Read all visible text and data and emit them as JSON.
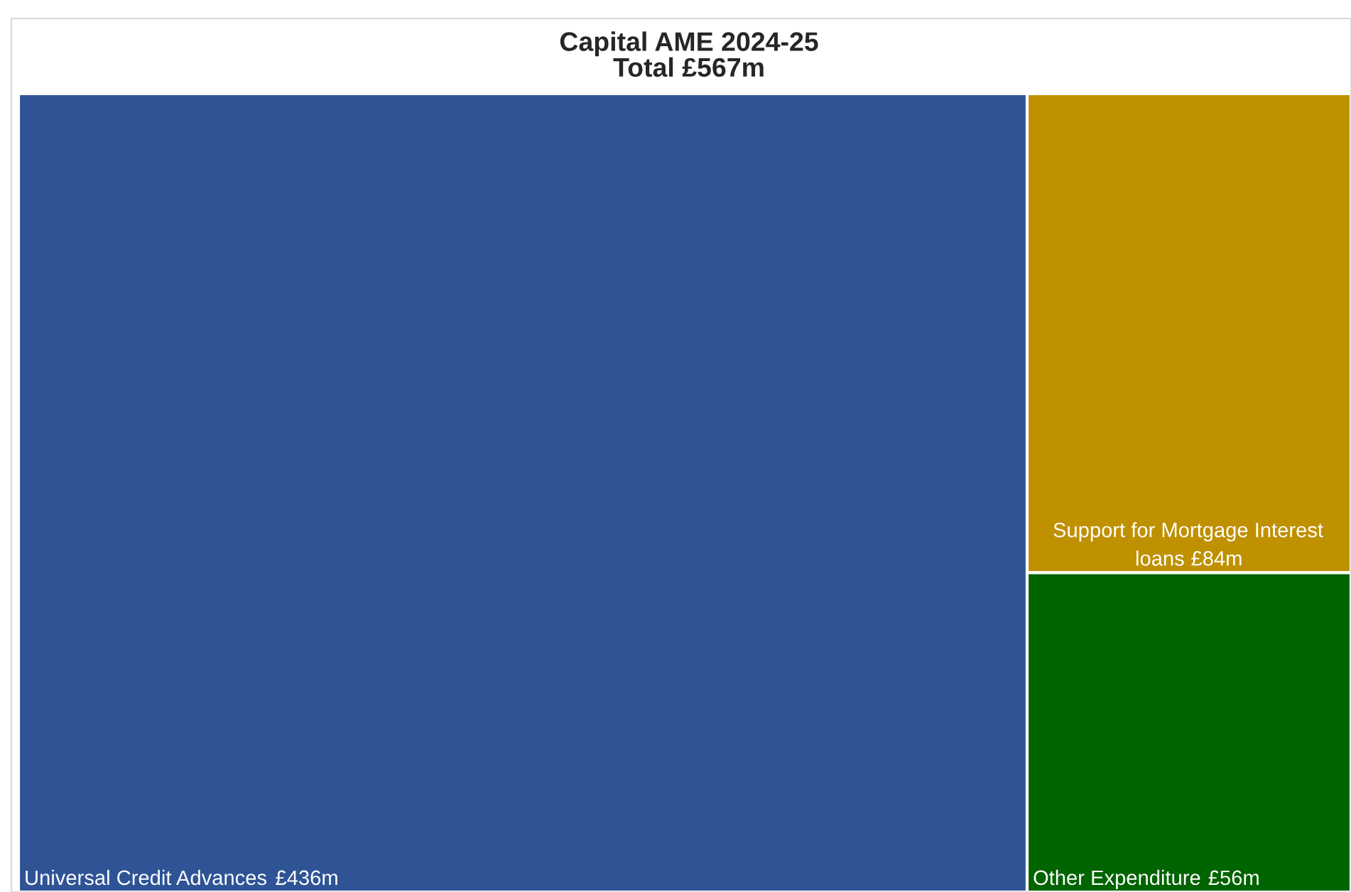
{
  "chart_data": {
    "type": "other",
    "title": "Capital AME 2024-25\nTotal £567m",
    "categories": [
      "Universal Credit Advances",
      "Support for Mortgage Interest loans",
      "Other Expenditure"
    ],
    "values": [
      436,
      84,
      56
    ],
    "value_labels": [
      "£436m",
      "£84m",
      "£56m"
    ],
    "colors": [
      "#2f5496",
      "#bf9000",
      "#006400"
    ]
  }
}
